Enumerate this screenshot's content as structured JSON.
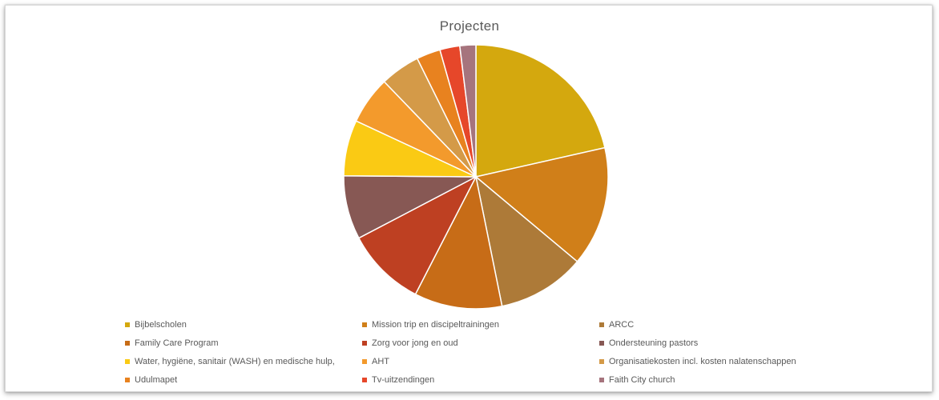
{
  "chart_data": {
    "type": "pie",
    "title": "Projecten",
    "legend_position": "bottom",
    "slices": [
      {
        "label": "Bijbelscholen",
        "value": 22,
        "color": "#D4A80E"
      },
      {
        "label": "Mission trip en discipeltrainingen",
        "value": 15,
        "color": "#D07F19"
      },
      {
        "label": "ARCC",
        "value": 11,
        "color": "#AD7A38"
      },
      {
        "label": "Family Care Program",
        "value": 11,
        "color": "#C76C17"
      },
      {
        "label": "Zorg voor jong en oud",
        "value": 10,
        "color": "#BE4022"
      },
      {
        "label": "Ondersteuning pastors",
        "value": 8,
        "color": "#875854"
      },
      {
        "label": "Water, hygiëne, sanitair (WASH) en medische hulp,",
        "value": 7,
        "color": "#FACA14"
      },
      {
        "label": "AHT",
        "value": 6,
        "color": "#F39A2C"
      },
      {
        "label": "Organisatiekosten incl. kosten nalatenschappen",
        "value": 5,
        "color": "#D49A48"
      },
      {
        "label": "Udulmapet",
        "value": 3,
        "color": "#E8821F"
      },
      {
        "label": "Tv-uitzendingen",
        "value": 2.5,
        "color": "#E6472A"
      },
      {
        "label": "Faith City church",
        "value": 2,
        "color": "#A6747D"
      }
    ]
  }
}
